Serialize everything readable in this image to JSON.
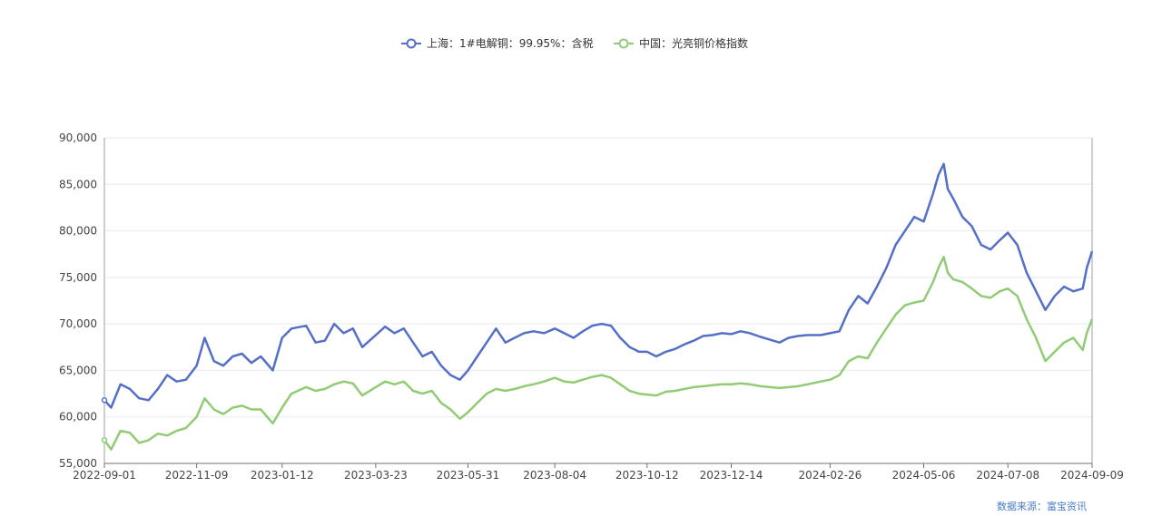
{
  "chart_data": {
    "type": "line",
    "title": "",
    "xlabel": "",
    "ylabel": "",
    "ylim": [
      55000,
      90000
    ],
    "yticks": [
      "90,000",
      "85,000",
      "80,000",
      "75,000",
      "70,000",
      "65,000",
      "60,000",
      "55,000"
    ],
    "ytick_values": [
      90000,
      85000,
      80000,
      75000,
      70000,
      65000,
      60000,
      55000
    ],
    "xlim": [
      "2022-09-01",
      "2024-09-09"
    ],
    "xticks": [
      "2022-09-01",
      "2022-11-09",
      "2023-01-12",
      "2023-03-23",
      "2023-05-31",
      "2023-08-04",
      "2023-10-12",
      "2023-12-14",
      "2024-02-26",
      "2024-05-06",
      "2024-07-08",
      "2024-09-09"
    ],
    "grid": true,
    "legend_position": "top-center",
    "series": [
      {
        "name": "上海：1#电解铜：99.95%：含税",
        "color": "#5470c6",
        "points": [
          [
            "2022-09-01",
            61800
          ],
          [
            "2022-09-06",
            61000
          ],
          [
            "2022-09-13",
            63500
          ],
          [
            "2022-09-20",
            63000
          ],
          [
            "2022-09-27",
            62000
          ],
          [
            "2022-10-04",
            61800
          ],
          [
            "2022-10-11",
            63000
          ],
          [
            "2022-10-18",
            64500
          ],
          [
            "2022-10-25",
            63800
          ],
          [
            "2022-11-01",
            64000
          ],
          [
            "2022-11-09",
            65500
          ],
          [
            "2022-11-15",
            68500
          ],
          [
            "2022-11-22",
            66000
          ],
          [
            "2022-11-29",
            65500
          ],
          [
            "2022-12-06",
            66500
          ],
          [
            "2022-12-13",
            66800
          ],
          [
            "2022-12-20",
            65800
          ],
          [
            "2022-12-27",
            66500
          ],
          [
            "2023-01-05",
            65000
          ],
          [
            "2023-01-12",
            68500
          ],
          [
            "2023-01-19",
            69500
          ],
          [
            "2023-01-30",
            69800
          ],
          [
            "2023-02-06",
            68000
          ],
          [
            "2023-02-13",
            68200
          ],
          [
            "2023-02-20",
            70000
          ],
          [
            "2023-02-27",
            69000
          ],
          [
            "2023-03-06",
            69500
          ],
          [
            "2023-03-13",
            67500
          ],
          [
            "2023-03-23",
            68800
          ],
          [
            "2023-03-30",
            69700
          ],
          [
            "2023-04-06",
            69000
          ],
          [
            "2023-04-13",
            69500
          ],
          [
            "2023-04-20",
            68000
          ],
          [
            "2023-04-27",
            66500
          ],
          [
            "2023-05-04",
            67000
          ],
          [
            "2023-05-11",
            65500
          ],
          [
            "2023-05-18",
            64500
          ],
          [
            "2023-05-25",
            64000
          ],
          [
            "2023-05-31",
            65000
          ],
          [
            "2023-06-07",
            66500
          ],
          [
            "2023-06-14",
            68000
          ],
          [
            "2023-06-21",
            69500
          ],
          [
            "2023-06-28",
            68000
          ],
          [
            "2023-07-05",
            68500
          ],
          [
            "2023-07-12",
            69000
          ],
          [
            "2023-07-19",
            69200
          ],
          [
            "2023-07-27",
            69000
          ],
          [
            "2023-08-04",
            69500
          ],
          [
            "2023-08-11",
            69000
          ],
          [
            "2023-08-18",
            68500
          ],
          [
            "2023-08-25",
            69200
          ],
          [
            "2023-09-01",
            69800
          ],
          [
            "2023-09-08",
            70000
          ],
          [
            "2023-09-15",
            69800
          ],
          [
            "2023-09-22",
            68500
          ],
          [
            "2023-09-29",
            67500
          ],
          [
            "2023-10-06",
            67000
          ],
          [
            "2023-10-12",
            67000
          ],
          [
            "2023-10-19",
            66500
          ],
          [
            "2023-10-26",
            67000
          ],
          [
            "2023-11-02",
            67300
          ],
          [
            "2023-11-09",
            67800
          ],
          [
            "2023-11-16",
            68200
          ],
          [
            "2023-11-23",
            68700
          ],
          [
            "2023-11-30",
            68800
          ],
          [
            "2023-12-07",
            69000
          ],
          [
            "2023-12-14",
            68900
          ],
          [
            "2023-12-21",
            69200
          ],
          [
            "2023-12-28",
            69000
          ],
          [
            "2024-01-05",
            68600
          ],
          [
            "2024-01-12",
            68300
          ],
          [
            "2024-01-19",
            68000
          ],
          [
            "2024-01-26",
            68500
          ],
          [
            "2024-02-02",
            68700
          ],
          [
            "2024-02-09",
            68800
          ],
          [
            "2024-02-19",
            68800
          ],
          [
            "2024-02-26",
            69000
          ],
          [
            "2024-03-04",
            69200
          ],
          [
            "2024-03-11",
            71500
          ],
          [
            "2024-03-18",
            73000
          ],
          [
            "2024-03-25",
            72200
          ],
          [
            "2024-04-01",
            74000
          ],
          [
            "2024-04-08",
            76000
          ],
          [
            "2024-04-15",
            78500
          ],
          [
            "2024-04-22",
            80000
          ],
          [
            "2024-04-29",
            81500
          ],
          [
            "2024-05-06",
            81000
          ],
          [
            "2024-05-13",
            84000
          ],
          [
            "2024-05-17",
            86000
          ],
          [
            "2024-05-21",
            87200
          ],
          [
            "2024-05-24",
            84500
          ],
          [
            "2024-05-28",
            83500
          ],
          [
            "2024-06-04",
            81500
          ],
          [
            "2024-06-11",
            80500
          ],
          [
            "2024-06-18",
            78500
          ],
          [
            "2024-06-25",
            78000
          ],
          [
            "2024-07-02",
            79000
          ],
          [
            "2024-07-08",
            79800
          ],
          [
            "2024-07-15",
            78500
          ],
          [
            "2024-07-22",
            75500
          ],
          [
            "2024-07-29",
            73500
          ],
          [
            "2024-08-05",
            71500
          ],
          [
            "2024-08-12",
            73000
          ],
          [
            "2024-08-19",
            74000
          ],
          [
            "2024-08-26",
            73500
          ],
          [
            "2024-09-02",
            73800
          ],
          [
            "2024-09-05",
            76000
          ],
          [
            "2024-09-09",
            77800
          ]
        ]
      },
      {
        "name": "中国：光亮铜价格指数",
        "color": "#91cc75",
        "points": [
          [
            "2022-09-01",
            57500
          ],
          [
            "2022-09-06",
            56500
          ],
          [
            "2022-09-13",
            58500
          ],
          [
            "2022-09-20",
            58300
          ],
          [
            "2022-09-27",
            57200
          ],
          [
            "2022-10-04",
            57500
          ],
          [
            "2022-10-11",
            58200
          ],
          [
            "2022-10-18",
            58000
          ],
          [
            "2022-10-25",
            58500
          ],
          [
            "2022-11-01",
            58800
          ],
          [
            "2022-11-09",
            60000
          ],
          [
            "2022-11-15",
            62000
          ],
          [
            "2022-11-22",
            60800
          ],
          [
            "2022-11-29",
            60300
          ],
          [
            "2022-12-06",
            61000
          ],
          [
            "2022-12-13",
            61200
          ],
          [
            "2022-12-20",
            60800
          ],
          [
            "2022-12-27",
            60800
          ],
          [
            "2023-01-05",
            59300
          ],
          [
            "2023-01-12",
            61000
          ],
          [
            "2023-01-19",
            62500
          ],
          [
            "2023-01-30",
            63200
          ],
          [
            "2023-02-06",
            62800
          ],
          [
            "2023-02-13",
            63000
          ],
          [
            "2023-02-20",
            63500
          ],
          [
            "2023-02-27",
            63800
          ],
          [
            "2023-03-06",
            63600
          ],
          [
            "2023-03-13",
            62300
          ],
          [
            "2023-03-23",
            63200
          ],
          [
            "2023-03-30",
            63800
          ],
          [
            "2023-04-06",
            63500
          ],
          [
            "2023-04-13",
            63800
          ],
          [
            "2023-04-20",
            62800
          ],
          [
            "2023-04-27",
            62500
          ],
          [
            "2023-05-04",
            62800
          ],
          [
            "2023-05-11",
            61500
          ],
          [
            "2023-05-18",
            60800
          ],
          [
            "2023-05-25",
            59800
          ],
          [
            "2023-05-31",
            60500
          ],
          [
            "2023-06-07",
            61500
          ],
          [
            "2023-06-14",
            62500
          ],
          [
            "2023-06-21",
            63000
          ],
          [
            "2023-06-28",
            62800
          ],
          [
            "2023-07-05",
            63000
          ],
          [
            "2023-07-12",
            63300
          ],
          [
            "2023-07-19",
            63500
          ],
          [
            "2023-07-27",
            63800
          ],
          [
            "2023-08-04",
            64200
          ],
          [
            "2023-08-11",
            63800
          ],
          [
            "2023-08-18",
            63700
          ],
          [
            "2023-08-25",
            64000
          ],
          [
            "2023-09-01",
            64300
          ],
          [
            "2023-09-08",
            64500
          ],
          [
            "2023-09-15",
            64200
          ],
          [
            "2023-09-22",
            63500
          ],
          [
            "2023-09-29",
            62800
          ],
          [
            "2023-10-06",
            62500
          ],
          [
            "2023-10-12",
            62400
          ],
          [
            "2023-10-19",
            62300
          ],
          [
            "2023-10-26",
            62700
          ],
          [
            "2023-11-02",
            62800
          ],
          [
            "2023-11-09",
            63000
          ],
          [
            "2023-11-16",
            63200
          ],
          [
            "2023-11-23",
            63300
          ],
          [
            "2023-11-30",
            63400
          ],
          [
            "2023-12-07",
            63500
          ],
          [
            "2023-12-14",
            63500
          ],
          [
            "2023-12-21",
            63600
          ],
          [
            "2023-12-28",
            63500
          ],
          [
            "2024-01-05",
            63300
          ],
          [
            "2024-01-12",
            63200
          ],
          [
            "2024-01-19",
            63100
          ],
          [
            "2024-01-26",
            63200
          ],
          [
            "2024-02-02",
            63300
          ],
          [
            "2024-02-09",
            63500
          ],
          [
            "2024-02-19",
            63800
          ],
          [
            "2024-02-26",
            64000
          ],
          [
            "2024-03-04",
            64500
          ],
          [
            "2024-03-11",
            66000
          ],
          [
            "2024-03-18",
            66500
          ],
          [
            "2024-03-25",
            66300
          ],
          [
            "2024-04-01",
            68000
          ],
          [
            "2024-04-08",
            69500
          ],
          [
            "2024-04-15",
            71000
          ],
          [
            "2024-04-22",
            72000
          ],
          [
            "2024-04-29",
            72300
          ],
          [
            "2024-05-06",
            72500
          ],
          [
            "2024-05-13",
            74500
          ],
          [
            "2024-05-17",
            76000
          ],
          [
            "2024-05-21",
            77200
          ],
          [
            "2024-05-24",
            75500
          ],
          [
            "2024-05-28",
            74800
          ],
          [
            "2024-06-04",
            74500
          ],
          [
            "2024-06-11",
            73800
          ],
          [
            "2024-06-18",
            73000
          ],
          [
            "2024-06-25",
            72800
          ],
          [
            "2024-07-02",
            73500
          ],
          [
            "2024-07-08",
            73800
          ],
          [
            "2024-07-15",
            73000
          ],
          [
            "2024-07-22",
            70500
          ],
          [
            "2024-07-29",
            68500
          ],
          [
            "2024-08-05",
            66000
          ],
          [
            "2024-08-12",
            67000
          ],
          [
            "2024-08-19",
            68000
          ],
          [
            "2024-08-26",
            68500
          ],
          [
            "2024-09-02",
            67200
          ],
          [
            "2024-09-05",
            69000
          ],
          [
            "2024-09-09",
            70500
          ]
        ]
      }
    ]
  },
  "source_label": "数据来源：富宝资讯"
}
